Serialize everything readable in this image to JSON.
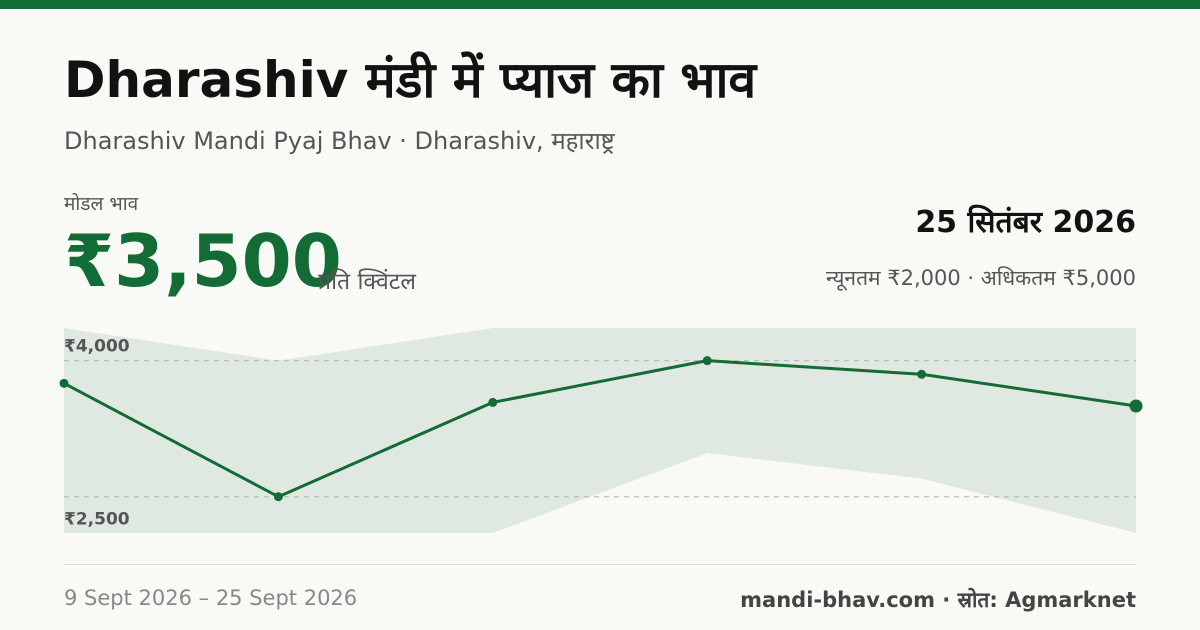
{
  "header": {
    "title": "Dharashiv मंडी में प्याज का भाव",
    "subtitle": "Dharashiv Mandi Pyaj Bhav · Dharashiv, महाराष्ट्र"
  },
  "price_panel": {
    "model_label": "मोडल भाव",
    "model_price": "₹3,500",
    "unit": "प्रति क्विंटल",
    "date": "25 सितंबर 2026",
    "min_max": "न्यूनतम ₹2,000 · अधिकतम ₹5,000"
  },
  "footer": {
    "date_range": "9 Sept 2026 – 25 Sept 2026",
    "source": "mandi-bhav.com · स्रोत: Agmarknet"
  },
  "colors": {
    "accent": "#136b35",
    "band": "#dfe9e2",
    "background": "#f9faf6"
  },
  "chart_data": {
    "type": "line",
    "x": [
      "9 Sept 2026",
      "",
      "",
      "",
      "",
      "25 Sept 2026"
    ],
    "series": [
      {
        "values": [
          3750,
          2500,
          3540,
          4000,
          3850,
          3500
        ]
      }
    ],
    "band": {
      "min": [
        2100,
        2100,
        2100,
        2980,
        2700,
        2100
      ],
      "max": [
        4360,
        4000,
        4360,
        4360,
        4360,
        4360
      ]
    },
    "y_ticks": [
      {
        "value": 4000,
        "label": "₹4,000"
      },
      {
        "value": 2500,
        "label": "₹2,500"
      }
    ],
    "ylim": [
      2100,
      4360
    ],
    "grid": true,
    "legend": "none",
    "title": "",
    "xlabel": "",
    "ylabel": ""
  }
}
